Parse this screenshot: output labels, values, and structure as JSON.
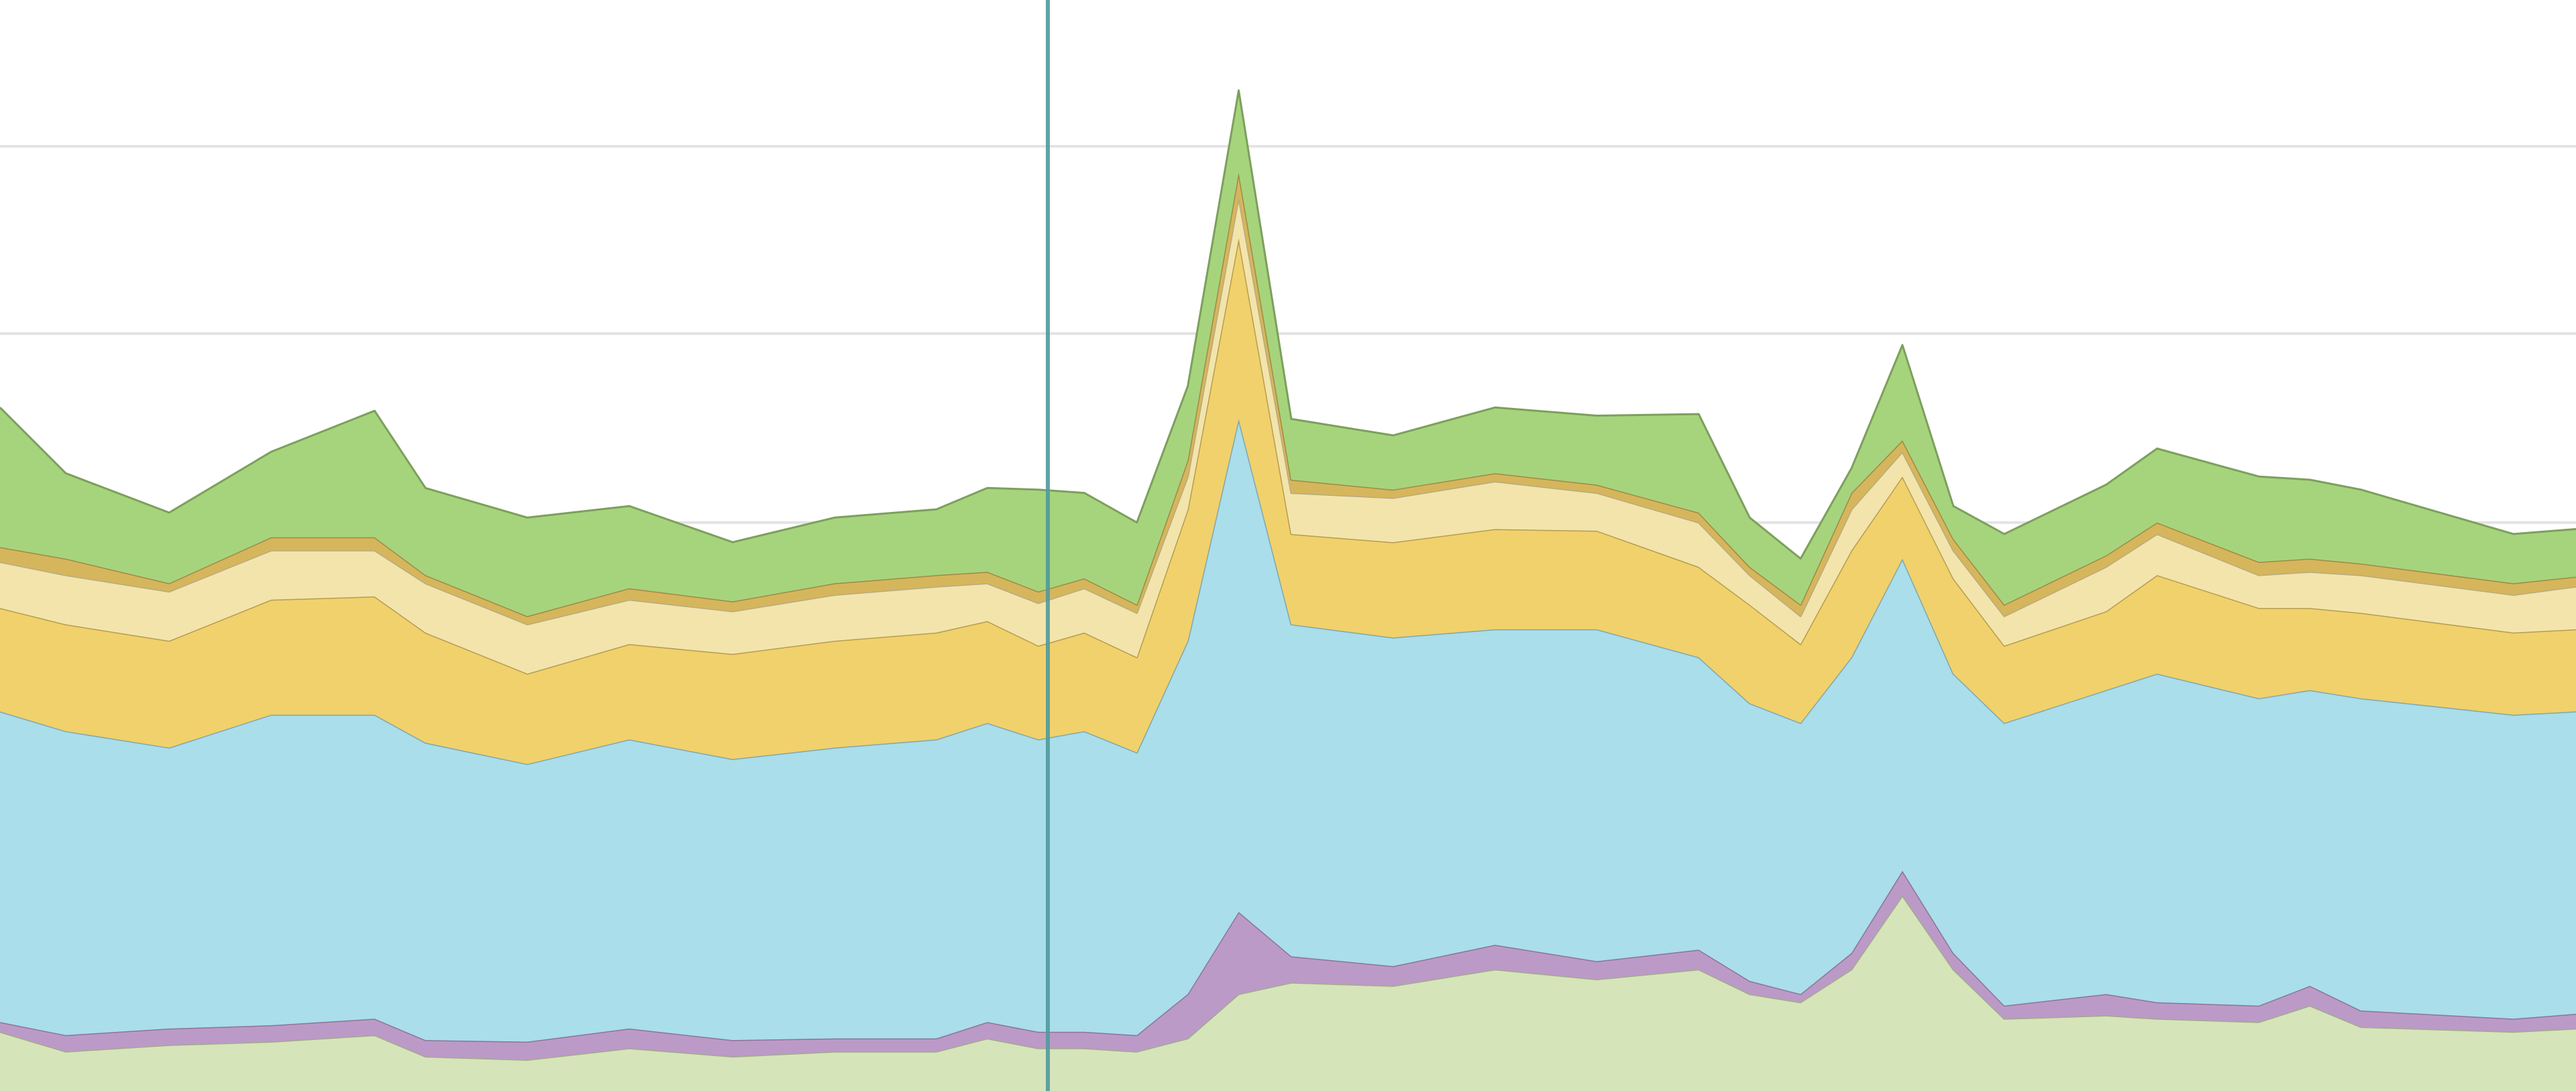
{
  "chart_data": {
    "type": "stacked-area",
    "x": [
      0,
      40,
      103,
      165,
      228,
      259,
      321,
      383,
      446,
      508,
      570,
      601,
      632,
      660,
      692,
      723,
      754,
      786,
      848,
      910,
      972,
      1034,
      1065,
      1096,
      1127,
      1158,
      1189,
      1220,
      1282,
      1313,
      1375,
      1406,
      1437,
      1530,
      1568
    ],
    "xlim": [
      0,
      1568
    ],
    "ylim": [
      0,
      664
    ],
    "yticks": [
      346,
      461,
      575
    ],
    "grid": true,
    "series": [
      {
        "color": "#d6e4b9",
        "values": [
          36,
          24,
          28,
          30,
          34,
          21,
          19,
          26,
          21,
          24,
          24,
          32,
          26,
          26,
          24,
          32,
          59,
          66,
          64,
          74,
          68,
          74,
          59,
          54,
          74,
          119,
          74,
          44,
          46,
          44,
          42,
          52,
          39,
          36,
          38
        ]
      },
      {
        "color": "#bc9ac8",
        "values": [
          6,
          10,
          10,
          10,
          10,
          10,
          11,
          12,
          10,
          8,
          8,
          10,
          10,
          10,
          10,
          27,
          50,
          16,
          12,
          15,
          11,
          12,
          8,
          5,
          10,
          15,
          10,
          8,
          13,
          10,
          10,
          12,
          10,
          8,
          9
        ]
      },
      {
        "color": "#a9deea",
        "values": [
          189,
          185,
          171,
          189,
          185,
          181,
          169,
          176,
          171,
          177,
          182,
          182,
          178,
          183,
          172,
          215,
          300,
          202,
          200,
          192,
          202,
          178,
          169,
          165,
          180,
          190,
          170,
          172,
          185,
          200,
          187,
          180,
          190,
          185,
          184
        ]
      },
      {
        "color": "#f1d16b",
        "values": [
          63,
          65,
          65,
          70,
          72,
          67,
          55,
          58,
          64,
          65,
          65,
          62,
          57,
          60,
          58,
          80,
          110,
          55,
          58,
          61,
          60,
          55,
          60,
          48,
          65,
          50,
          58,
          47,
          48,
          60,
          55,
          50,
          52,
          50,
          50
        ]
      },
      {
        "color": "#f3e4ac",
        "values": [
          28,
          30,
          30,
          30,
          28,
          30,
          30,
          27,
          26,
          28,
          28,
          23,
          26,
          27,
          27,
          20,
          25,
          25,
          27,
          29,
          23,
          27,
          18,
          17,
          25,
          15,
          17,
          18,
          27,
          25,
          20,
          22,
          23,
          23,
          26
        ]
      },
      {
        "color": "#d6b65c",
        "values": [
          9,
          10,
          5,
          8,
          8,
          5,
          5,
          7,
          6,
          7,
          7,
          7,
          7,
          6,
          5,
          10,
          15,
          8,
          5,
          5,
          5,
          6,
          5,
          7,
          10,
          7,
          7,
          7,
          7,
          7,
          8,
          8,
          7,
          7,
          6
        ]
      },
      {
        "color": "#a6d47c",
        "values": [
          85,
          52,
          43,
          52,
          77,
          53,
          60,
          50,
          36,
          40,
          40,
          51,
          62,
          52,
          50,
          45,
          50,
          37,
          33,
          40,
          42,
          60,
          30,
          28,
          15,
          58,
          20,
          43,
          43,
          45,
          52,
          48,
          45,
          30,
          29
        ]
      }
    ]
  }
}
